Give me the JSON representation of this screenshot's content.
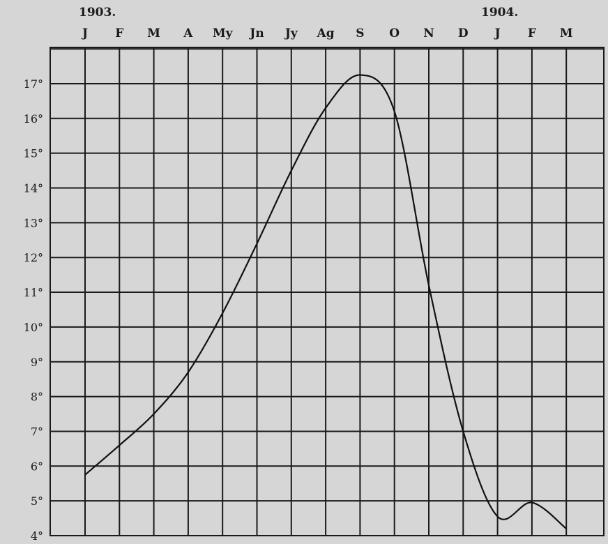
{
  "chart_data": {
    "type": "line",
    "year_labels": [
      "1903.",
      "1904."
    ],
    "categories": [
      "J",
      "F",
      "M",
      "A",
      "My",
      "Jn",
      "Jy",
      "Ag",
      "S",
      "O",
      "N",
      "D",
      "J",
      "F",
      "M"
    ],
    "y_ticks": [
      "4°",
      "5°",
      "6°",
      "7°",
      "8°",
      "9°",
      "10°",
      "11°",
      "12°",
      "13°",
      "14°",
      "15°",
      "16°",
      "17°"
    ],
    "ylim": [
      4,
      17.9
    ],
    "grid": true,
    "series": [
      {
        "values": [
          5.75,
          6.6,
          7.5,
          8.7,
          10.4,
          12.4,
          14.5,
          16.3,
          17.25,
          16.2,
          11.2,
          7.0,
          4.55,
          4.95,
          4.2
        ]
      }
    ],
    "colors": {
      "background": "#d6d6d6",
      "grid": "#1a1a1a",
      "line": "#111111"
    }
  }
}
